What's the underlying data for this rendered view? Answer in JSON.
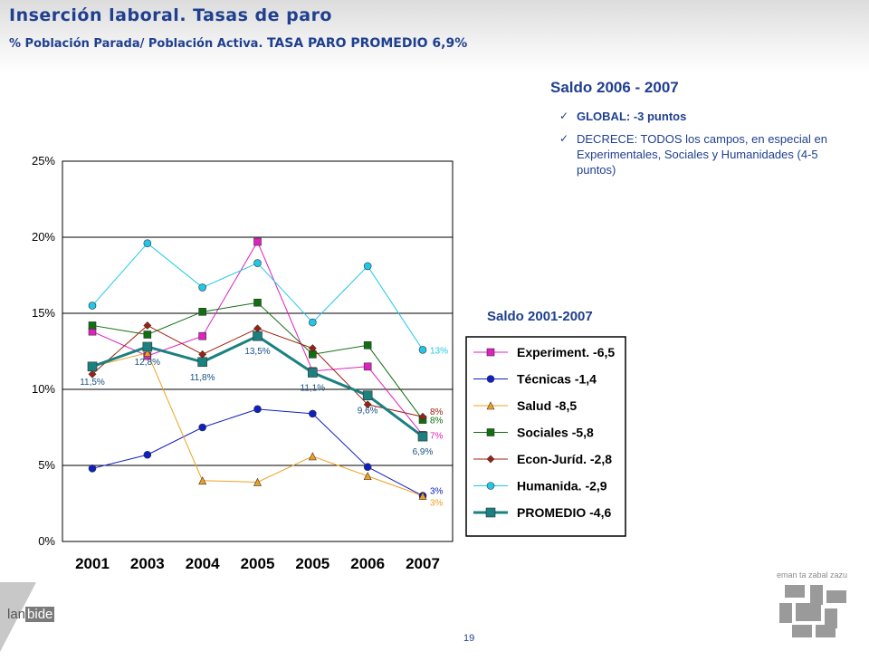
{
  "header": {
    "title": "Inserción laboral. Tasas de paro",
    "subtitle_prefix": "% Población Parada/ Población Activa.",
    "subtitle_highlight": "TASA PARO PROMEDIO 6,9%"
  },
  "summary": {
    "heading": "Saldo 2006 - 2007",
    "bullets": [
      {
        "text": "GLOBAL: -3 puntos",
        "strong": true
      },
      {
        "text": "DECRECE: TODOS los campos, en especial en Experimentales, Sociales y Humanidades (4-5 puntos)",
        "strong": false
      }
    ],
    "bullet_icon": "check-arrow-icon",
    "legend_heading": "Saldo 2001-2007"
  },
  "chart_data": {
    "type": "line",
    "categories": [
      "2001",
      "2003",
      "2004",
      "2005",
      "2005",
      "2006",
      "2007"
    ],
    "ylim": [
      0,
      25
    ],
    "yticks": [
      "0%",
      "5%",
      "10%",
      "15%",
      "20%",
      "25%"
    ],
    "grid": true,
    "legend_placement": "right",
    "series": [
      {
        "name": "Experiment. -6,5",
        "color": "#e020c0",
        "marker": "square",
        "values": [
          13.8,
          12.2,
          13.5,
          19.7,
          11.2,
          11.5,
          7
        ]
      },
      {
        "name": "Técnicas -1,4",
        "color": "#1020c0",
        "marker": "circle",
        "values": [
          4.8,
          5.7,
          7.5,
          8.7,
          8.4,
          4.9,
          3
        ]
      },
      {
        "name": "Salud -8,5",
        "color": "#f0a020",
        "marker": "triangle",
        "values": [
          11.5,
          12.4,
          4.0,
          3.9,
          5.6,
          4.3,
          3
        ]
      },
      {
        "name": "Sociales -5,8",
        "color": "#107010",
        "marker": "square",
        "values": [
          14.2,
          13.6,
          15.1,
          15.7,
          12.3,
          12.9,
          8
        ]
      },
      {
        "name": "Econ-Juríd. -2,8",
        "color": "#a02010",
        "marker": "diamond",
        "values": [
          11.0,
          14.2,
          12.3,
          14.0,
          12.7,
          9.0,
          8.2
        ]
      },
      {
        "name": "Humanida. -2,9",
        "color": "#20c8e8",
        "marker": "circle",
        "values": [
          15.5,
          19.6,
          16.7,
          18.3,
          14.4,
          18.1,
          12.6
        ]
      },
      {
        "name": "PROMEDIO -4,6",
        "color": "#1a8080",
        "marker": "square",
        "thick": true,
        "values": [
          11.5,
          12.8,
          11.8,
          13.5,
          11.1,
          9.6,
          6.9
        ]
      }
    ],
    "annotations": [
      {
        "text": "11,5%",
        "series": 6,
        "index": 0,
        "pos": "below",
        "color": "#1a5080"
      },
      {
        "text": "12,8%",
        "series": 6,
        "index": 1,
        "pos": "below",
        "color": "#1a5080"
      },
      {
        "text": "11,8%",
        "series": 6,
        "index": 2,
        "pos": "below",
        "color": "#1a5080"
      },
      {
        "text": "13,5%",
        "series": 6,
        "index": 3,
        "pos": "below",
        "color": "#1a5080"
      },
      {
        "text": "11,1%",
        "series": 6,
        "index": 4,
        "pos": "below",
        "color": "#1a5080"
      },
      {
        "text": "9,6%",
        "series": 6,
        "index": 5,
        "pos": "below",
        "color": "#1a5080"
      },
      {
        "text": "6,9%",
        "series": 6,
        "index": 6,
        "pos": "below",
        "color": "#1a5080"
      },
      {
        "text": "13%",
        "series": 5,
        "index": 6,
        "pos": "right",
        "color": "#20c8e8"
      },
      {
        "text": "8%",
        "series": 4,
        "index": 6,
        "pos": "right-up",
        "color": "#a02010"
      },
      {
        "text": "8%",
        "series": 3,
        "index": 6,
        "pos": "right",
        "color": "#107010"
      },
      {
        "text": "7%",
        "series": 0,
        "index": 6,
        "pos": "right",
        "color": "#e020c0"
      },
      {
        "text": "3%",
        "series": 1,
        "index": 6,
        "pos": "right-up",
        "color": "#1020c0"
      },
      {
        "text": "3%",
        "series": 2,
        "index": 6,
        "pos": "right-down",
        "color": "#f0a020"
      }
    ]
  },
  "footer": {
    "page_number": "19",
    "brand_prefix": "lan",
    "brand_highlight": "bide",
    "logo_caption": "eman ta zabal zazu"
  }
}
